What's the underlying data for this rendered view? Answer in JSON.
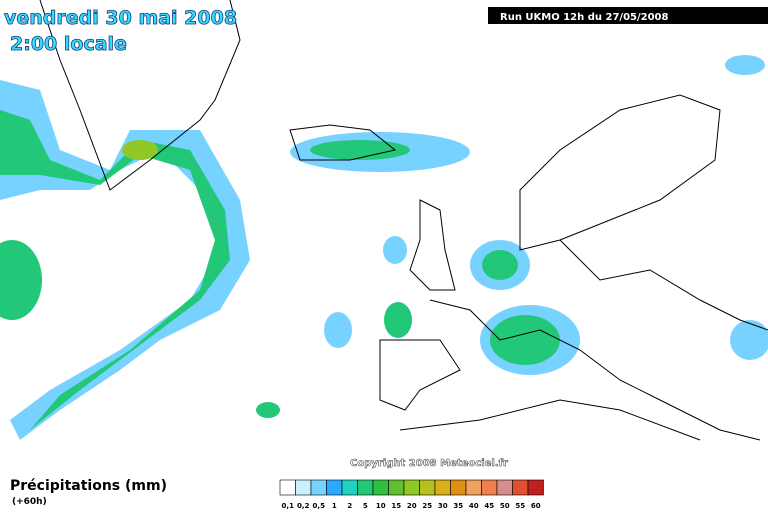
{
  "header": {
    "date": "vendredi 30 mai 2008",
    "time": "2:00 locale",
    "run": "Run UKMO 12h du 27/05/2008"
  },
  "copyright": "Copyright 2008 Meteociel.fr",
  "legend": {
    "title": "Précipitations (mm)",
    "offset": "(+60h)",
    "items": [
      {
        "label": "0,1",
        "color": "#ffffff"
      },
      {
        "label": "0,2",
        "color": "#c8f0ff"
      },
      {
        "label": "0,5",
        "color": "#78d2ff"
      },
      {
        "label": "1",
        "color": "#2ea8ff"
      },
      {
        "label": "2",
        "color": "#20d0c0"
      },
      {
        "label": "5",
        "color": "#22c878"
      },
      {
        "label": "10",
        "color": "#30c040"
      },
      {
        "label": "15",
        "color": "#60c030"
      },
      {
        "label": "20",
        "color": "#90c828"
      },
      {
        "label": "25",
        "color": "#b8c020"
      },
      {
        "label": "30",
        "color": "#d8b018"
      },
      {
        "label": "35",
        "color": "#e09010"
      },
      {
        "label": "40",
        "color": "#f0a060"
      },
      {
        "label": "45",
        "color": "#f08050"
      },
      {
        "label": "50",
        "color": "#d88c8c"
      },
      {
        "label": "55",
        "color": "#e05030"
      },
      {
        "label": "60",
        "color": "#c02020"
      }
    ]
  }
}
